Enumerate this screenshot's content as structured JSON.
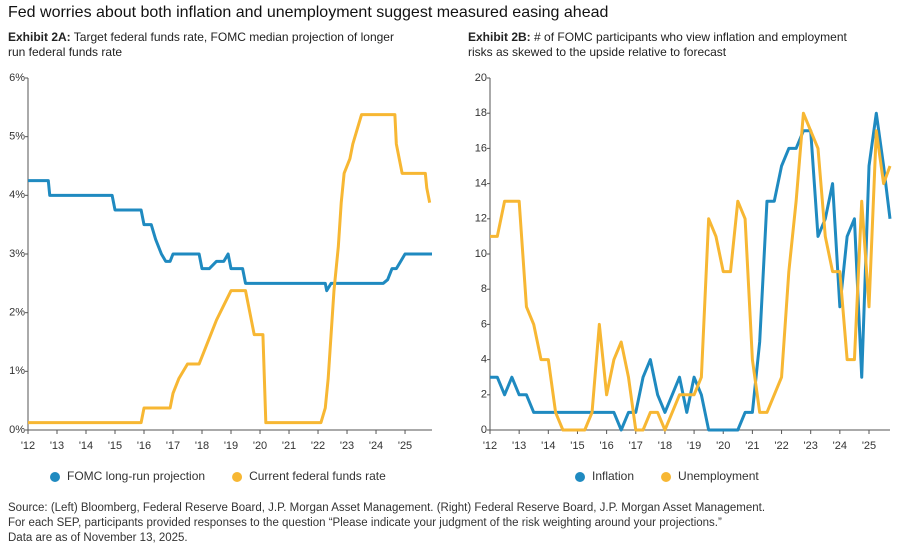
{
  "title": "Fed worries about both inflation and unemployment suggest measured easing ahead",
  "source": [
    "Source: (Left) Bloomberg, Federal Reserve Board, J.P. Morgan Asset Management. (Right) Federal Reserve Board, J.P. Morgan Asset Management.",
    "For each SEP, participants provided responses to the question “Please indicate your judgment of the risk weighting around your projections.”",
    "Data are as of November 13, 2025."
  ],
  "chart_data": [
    {
      "type": "line",
      "label": "Exhibit 2A:",
      "title": "Target federal funds rate, FOMC median projection of longer run federal funds rate",
      "xlim": [
        2012,
        2025.93
      ],
      "xticks": [
        {
          "value": 2012,
          "label": "'12"
        },
        {
          "value": 2013,
          "label": "'13"
        },
        {
          "value": 2014,
          "label": "'14"
        },
        {
          "value": 2015,
          "label": "'15"
        },
        {
          "value": 2016,
          "label": "'16"
        },
        {
          "value": 2017,
          "label": "'17"
        },
        {
          "value": 2018,
          "label": "'18"
        },
        {
          "value": 2019,
          "label": "'19"
        },
        {
          "value": 2020,
          "label": "'20"
        },
        {
          "value": 2021,
          "label": "'21"
        },
        {
          "value": 2022,
          "label": "'22"
        },
        {
          "value": 2023,
          "label": "'23"
        },
        {
          "value": 2024,
          "label": "'24"
        },
        {
          "value": 2025,
          "label": "'25"
        }
      ],
      "ylim": [
        0,
        6
      ],
      "yticks": [
        {
          "value": 0,
          "label": "0%"
        },
        {
          "value": 1,
          "label": "1%"
        },
        {
          "value": 2,
          "label": "2%"
        },
        {
          "value": 3,
          "label": "3%"
        },
        {
          "value": 4,
          "label": "4%"
        },
        {
          "value": 5,
          "label": "5%"
        },
        {
          "value": 6,
          "label": "6%"
        }
      ],
      "series": [
        {
          "name": "FOMC long-run projection",
          "color": "#1f8ac0",
          "x": [
            2012,
            2012.7,
            2012.75,
            2014.9,
            2015,
            2015.9,
            2016,
            2016.25,
            2016.4,
            2016.6,
            2016.75,
            2016.9,
            2017,
            2017.9,
            2018,
            2018.25,
            2018.5,
            2018.75,
            2018.9,
            2019,
            2019.4,
            2019.5,
            2022.25,
            2022.3,
            2022.45,
            2024.25,
            2024.4,
            2024.55,
            2024.7,
            2024.85,
            2025,
            2025.93
          ],
          "values": [
            4.25,
            4.25,
            4.0,
            4.0,
            3.75,
            3.75,
            3.5,
            3.5,
            3.25,
            3.0,
            2.875,
            2.875,
            3.0,
            3.0,
            2.75,
            2.75,
            2.875,
            2.875,
            3.0,
            2.75,
            2.75,
            2.5,
            2.5,
            2.375,
            2.5,
            2.5,
            2.5625,
            2.75,
            2.75,
            2.875,
            3.0,
            3.0
          ]
        },
        {
          "name": "Current federal funds rate",
          "color": "#f7b733",
          "x": [
            2012,
            2015.9,
            2016,
            2016.9,
            2017.0,
            2017.2,
            2017.5,
            2017.9,
            2018.1,
            2018.3,
            2018.5,
            2018.75,
            2019.0,
            2019.5,
            2019.6,
            2019.7,
            2019.8,
            2020.1,
            2020.2,
            2022.1,
            2022.25,
            2022.35,
            2022.45,
            2022.55,
            2022.7,
            2022.8,
            2022.9,
            2023.1,
            2023.2,
            2023.35,
            2023.5,
            2024.65,
            2024.7,
            2024.8,
            2024.9,
            2025.7,
            2025.75,
            2025.85
          ],
          "values": [
            0.125,
            0.125,
            0.375,
            0.375,
            0.625,
            0.875,
            1.125,
            1.125,
            1.375,
            1.625,
            1.875,
            2.125,
            2.375,
            2.375,
            2.125,
            1.875,
            1.625,
            1.625,
            0.125,
            0.125,
            0.375,
            0.875,
            1.625,
            2.375,
            3.125,
            3.875,
            4.375,
            4.625,
            4.875,
            5.125,
            5.375,
            5.375,
            4.875,
            4.625,
            4.375,
            4.375,
            4.125,
            3.875
          ]
        }
      ]
    },
    {
      "type": "line",
      "label": "Exhibit 2B:",
      "title": "# of FOMC participants who view inflation and employment risks as skewed to the upside relative to forecast",
      "xlim": [
        2012,
        2025.72
      ],
      "xticks": [
        {
          "value": 2012,
          "label": "'12"
        },
        {
          "value": 2013,
          "label": "'13"
        },
        {
          "value": 2014,
          "label": "'14"
        },
        {
          "value": 2015,
          "label": "'15"
        },
        {
          "value": 2016,
          "label": "'16"
        },
        {
          "value": 2017,
          "label": "'17"
        },
        {
          "value": 2018,
          "label": "'18"
        },
        {
          "value": 2019,
          "label": "'19"
        },
        {
          "value": 2020,
          "label": "'20"
        },
        {
          "value": 2021,
          "label": "'21"
        },
        {
          "value": 2022,
          "label": "'22"
        },
        {
          "value": 2023,
          "label": "'23"
        },
        {
          "value": 2024,
          "label": "'24"
        },
        {
          "value": 2025,
          "label": "'25"
        }
      ],
      "ylim": [
        0,
        20
      ],
      "yticks": [
        0,
        2,
        4,
        6,
        8,
        10,
        12,
        14,
        16,
        18,
        20
      ],
      "x": [
        2012,
        2012.25,
        2012.5,
        2012.75,
        2013,
        2013.25,
        2013.5,
        2013.75,
        2014,
        2014.25,
        2014.5,
        2014.75,
        2015,
        2015.25,
        2015.5,
        2015.75,
        2016,
        2016.25,
        2016.5,
        2016.75,
        2017,
        2017.25,
        2017.5,
        2017.75,
        2018,
        2018.25,
        2018.5,
        2018.75,
        2019,
        2019.25,
        2019.5,
        2019.75,
        2020,
        2020.25,
        2020.5,
        2020.75,
        2021,
        2021.25,
        2021.5,
        2021.75,
        2022,
        2022.25,
        2022.5,
        2022.75,
        2023,
        2023.25,
        2023.5,
        2023.75,
        2024,
        2024.25,
        2024.5,
        2024.75,
        2025,
        2025.25,
        2025.5,
        2025.72
      ],
      "series": [
        {
          "name": "Inflation",
          "color": "#1f8ac0",
          "values": [
            3,
            3,
            2,
            3,
            2,
            2,
            1,
            1,
            1,
            1,
            1,
            1,
            1,
            1,
            1,
            1,
            1,
            1,
            0,
            1,
            1,
            3,
            4,
            2,
            1,
            2,
            3,
            1,
            3,
            2,
            0,
            0,
            0,
            0,
            0,
            1,
            1,
            5,
            13,
            13,
            15,
            16,
            16,
            17,
            17,
            11,
            12,
            14,
            7,
            11,
            12,
            3,
            15,
            18,
            15,
            12
          ]
        },
        {
          "name": "Unemployment",
          "color": "#f7b733",
          "values": [
            11,
            11,
            13,
            13,
            13,
            7,
            6,
            4,
            4,
            1,
            0,
            0,
            0,
            0,
            1,
            6,
            2,
            4,
            5,
            3,
            0,
            0,
            1,
            1,
            0,
            1,
            2,
            2,
            2,
            3,
            12,
            11,
            9,
            9,
            13,
            12,
            4,
            1,
            1,
            2,
            3,
            9,
            13,
            18,
            17,
            16,
            11,
            9,
            9,
            4,
            4,
            13,
            7,
            17,
            14,
            15
          ]
        }
      ]
    }
  ]
}
